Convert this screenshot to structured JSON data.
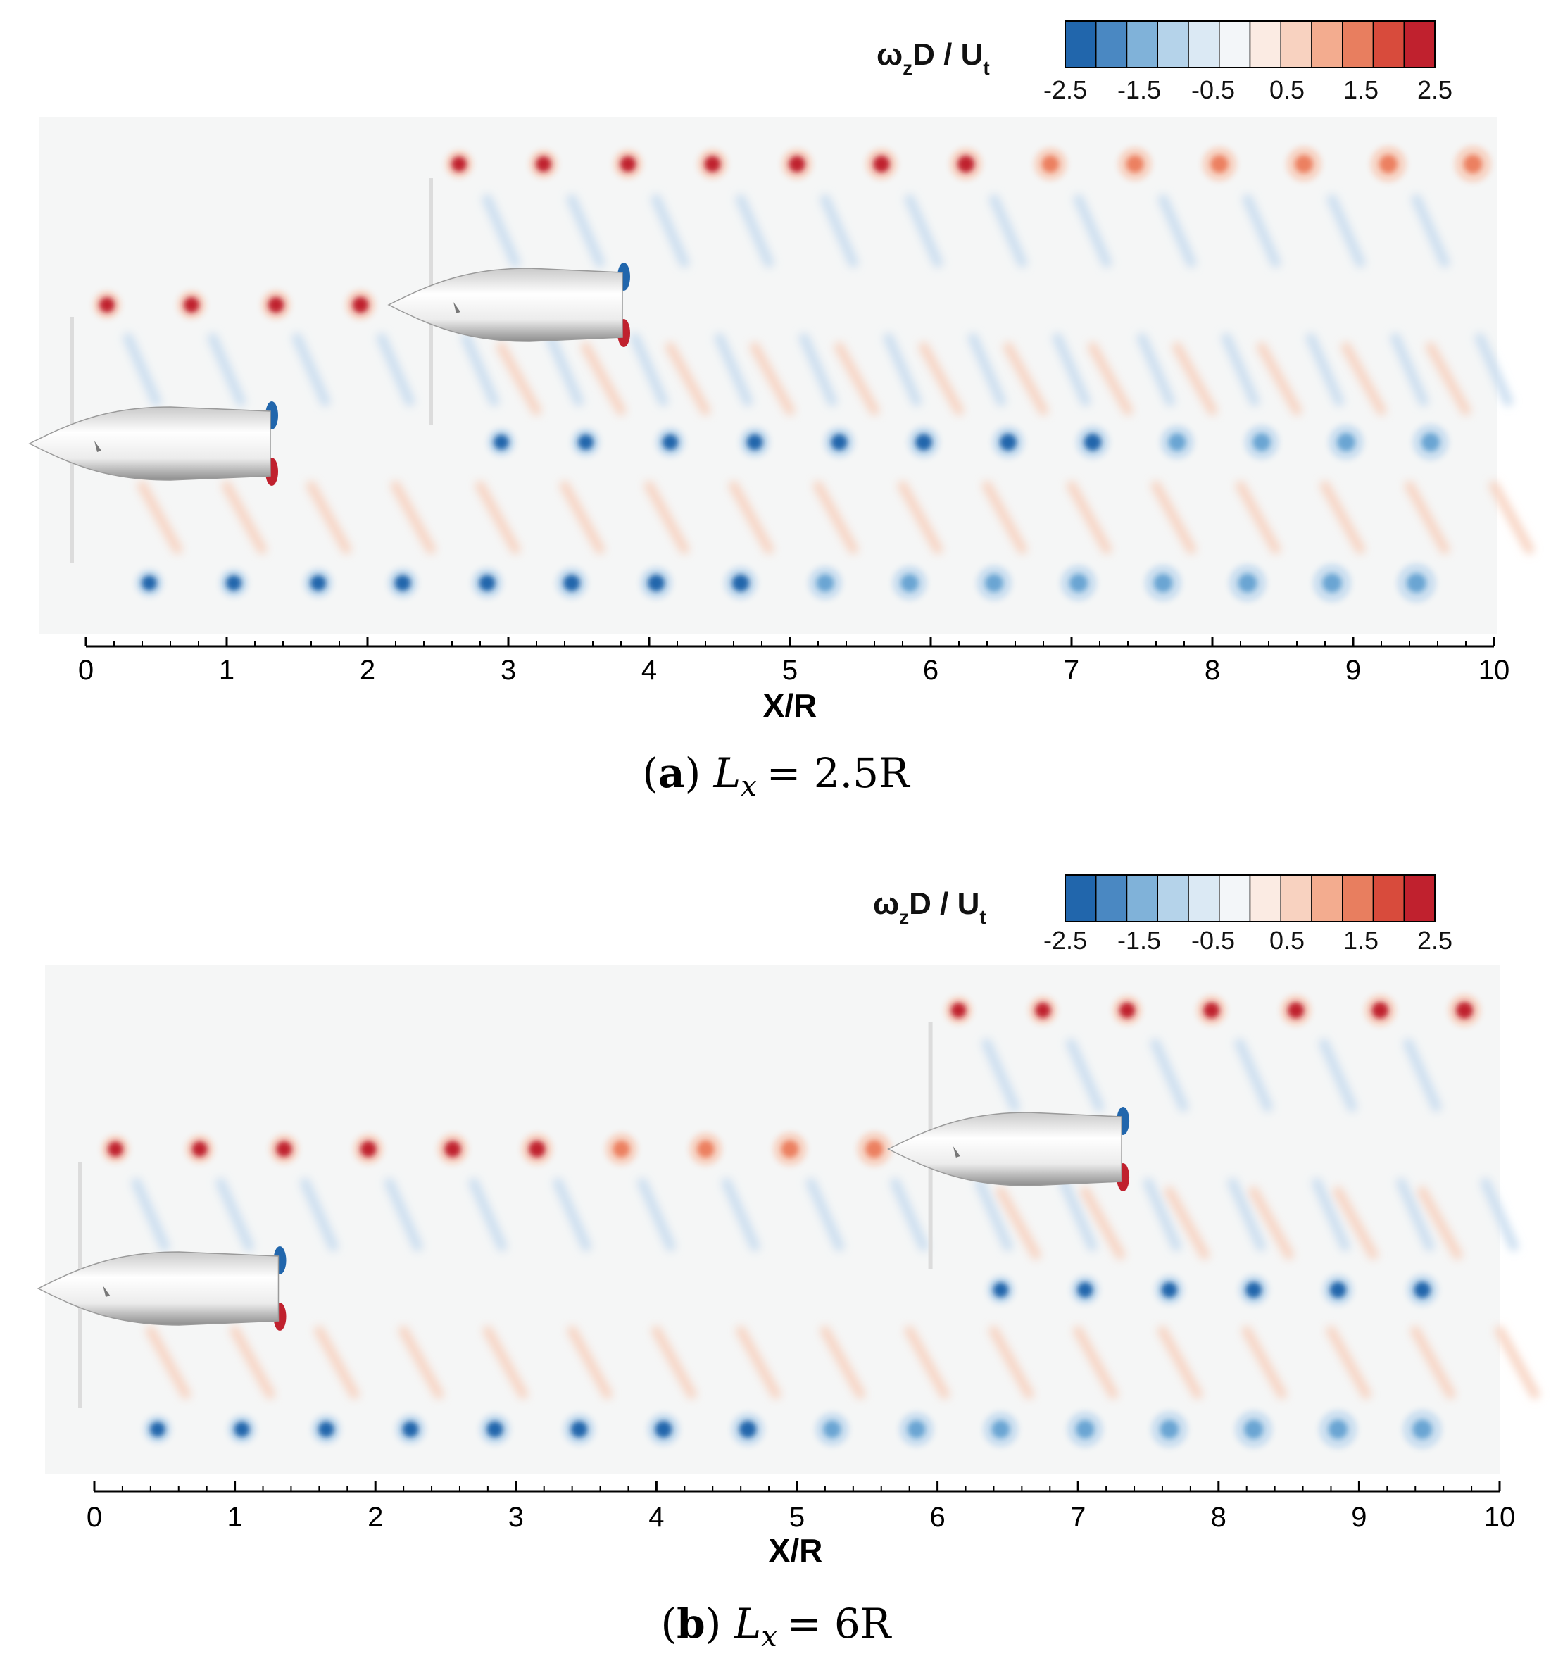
{
  "chart_data": [
    {
      "type": "heatmap",
      "panel_label": "(a)",
      "caption_label": "a",
      "caption_variable": "L",
      "caption_subscript": "x",
      "caption_value": "= 2.5R",
      "xlabel": "X/R",
      "xlim": [
        0,
        10
      ],
      "xticks": [
        "0",
        "1",
        "2",
        "3",
        "4",
        "5",
        "6",
        "7",
        "8",
        "9",
        "10"
      ],
      "colorbar_title": "ω",
      "colorbar_title_sub": "z",
      "colorbar_title_rest": "D / U",
      "colorbar_title_sub2": "t",
      "colorbar_range": [
        -2.5,
        2.5
      ],
      "colorbar_ticks": [
        "-2.5",
        "-1.5",
        "-0.5",
        "0.5",
        "1.5",
        "2.5"
      ],
      "nacelles": [
        {
          "x_nose": -0.5,
          "x_tail": 1.3,
          "y_level": "lower"
        },
        {
          "x_nose": 2.05,
          "x_tail": 3.8,
          "y_level": "upper"
        }
      ],
      "tip_vortex_rows": [
        {
          "sign": "positive",
          "x_start": 0.15,
          "x_end": 1.95,
          "spacing": 0.6,
          "row": "upstream-top"
        },
        {
          "sign": "negative",
          "x_start": 0.45,
          "x_end": 9.95,
          "spacing": 0.6,
          "row": "upstream-bottom"
        },
        {
          "sign": "positive",
          "x_start": 2.65,
          "x_end": 9.95,
          "spacing": 0.6,
          "row": "downstream-top"
        },
        {
          "sign": "negative",
          "x_start": 2.95,
          "x_end": 9.95,
          "spacing": 0.6,
          "row": "downstream-bottom"
        }
      ]
    },
    {
      "type": "heatmap",
      "panel_label": "(b)",
      "caption_label": "b",
      "caption_variable": "L",
      "caption_subscript": "x",
      "caption_value": "= 6R",
      "xlabel": "X/R",
      "xlim": [
        0,
        10
      ],
      "xticks": [
        "0",
        "1",
        "2",
        "3",
        "4",
        "5",
        "6",
        "7",
        "8",
        "9",
        "10"
      ],
      "colorbar_title": "ω",
      "colorbar_title_sub": "z",
      "colorbar_title_rest": "D / U",
      "colorbar_title_sub2": "t",
      "colorbar_range": [
        -2.5,
        2.5
      ],
      "colorbar_ticks": [
        "-2.5",
        "-1.5",
        "-0.5",
        "0.5",
        "1.5",
        "2.5"
      ],
      "nacelles": [
        {
          "x_nose": -0.5,
          "x_tail": 1.3,
          "y_level": "lower"
        },
        {
          "x_nose": 5.55,
          "x_tail": 7.3,
          "y_level": "upper"
        }
      ],
      "tip_vortex_rows": [
        {
          "sign": "positive",
          "x_start": 0.15,
          "x_end": 5.55,
          "spacing": 0.6,
          "row": "upstream-top"
        },
        {
          "sign": "negative",
          "x_start": 0.45,
          "x_end": 9.95,
          "spacing": 0.6,
          "row": "upstream-bottom"
        },
        {
          "sign": "positive",
          "x_start": 6.15,
          "x_end": 9.95,
          "spacing": 0.6,
          "row": "downstream-top"
        },
        {
          "sign": "negative",
          "x_start": 6.45,
          "x_end": 9.95,
          "spacing": 0.6,
          "row": "downstream-bottom"
        }
      ]
    }
  ],
  "colors": {
    "neg_strong": "#2166ac",
    "neg_mid": "#6aa5d3",
    "neg_light": "#c6dcef",
    "neutral": "#f5f6f6",
    "pos_light": "#f7d0bf",
    "pos_mid": "#ec8060",
    "pos_strong": "#c0212e",
    "nacelle": "#e8e8e8"
  },
  "colorbar_colors": [
    "#2166ac",
    "#4a88c2",
    "#80b2d9",
    "#b5d3ea",
    "#dbe9f4",
    "#f3f6f9",
    "#fbebe3",
    "#f8d2c0",
    "#f3ac8f",
    "#e87e5f",
    "#d84b3c",
    "#c0212e"
  ]
}
